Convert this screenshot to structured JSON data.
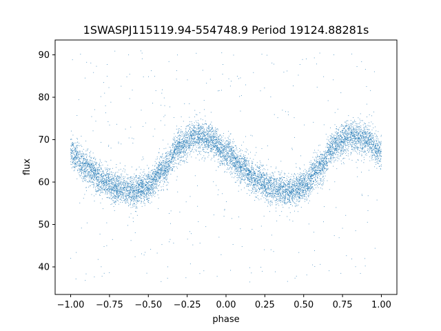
{
  "chart_data": {
    "type": "scatter",
    "title": "1SWASPJ115119.94-554748.9 Period 19124.88281s",
    "xlabel": "phase",
    "ylabel": "flux",
    "xlim": [
      -1.1,
      1.1
    ],
    "ylim": [
      33.5,
      93.5
    ],
    "xticks": [
      -1.0,
      -0.75,
      -0.5,
      -0.25,
      0.0,
      0.25,
      0.5,
      0.75,
      1.0
    ],
    "xtick_labels": [
      "−1.00",
      "−0.75",
      "−0.50",
      "−0.25",
      "0.00",
      "0.25",
      "0.50",
      "0.75",
      "1.00"
    ],
    "yticks": [
      40,
      50,
      60,
      70,
      80,
      90
    ],
    "ytick_labels": [
      "40",
      "50",
      "60",
      "70",
      "80",
      "90"
    ],
    "grid": false,
    "marker_color": "#1f77b4",
    "phase_range": [
      -1.0,
      1.0
    ],
    "curve_x": [
      -1.0,
      -0.9,
      -0.8,
      -0.7,
      -0.6,
      -0.5,
      -0.4,
      -0.3,
      -0.2,
      -0.1,
      0.0,
      0.1,
      0.2,
      0.3,
      0.4,
      0.5,
      0.6,
      0.7,
      0.8,
      0.9,
      1.0
    ],
    "curve_y": [
      67.0,
      63.5,
      60.5,
      58.5,
      57.8,
      59.0,
      63.0,
      68.5,
      71.0,
      70.0,
      67.0,
      63.5,
      60.5,
      58.5,
      57.8,
      59.0,
      63.0,
      68.5,
      71.0,
      70.0,
      67.0
    ],
    "scatter_spread": 1.8,
    "outlier_range": [
      36,
      91
    ],
    "num_points": 9000,
    "num_outliers": 380
  }
}
